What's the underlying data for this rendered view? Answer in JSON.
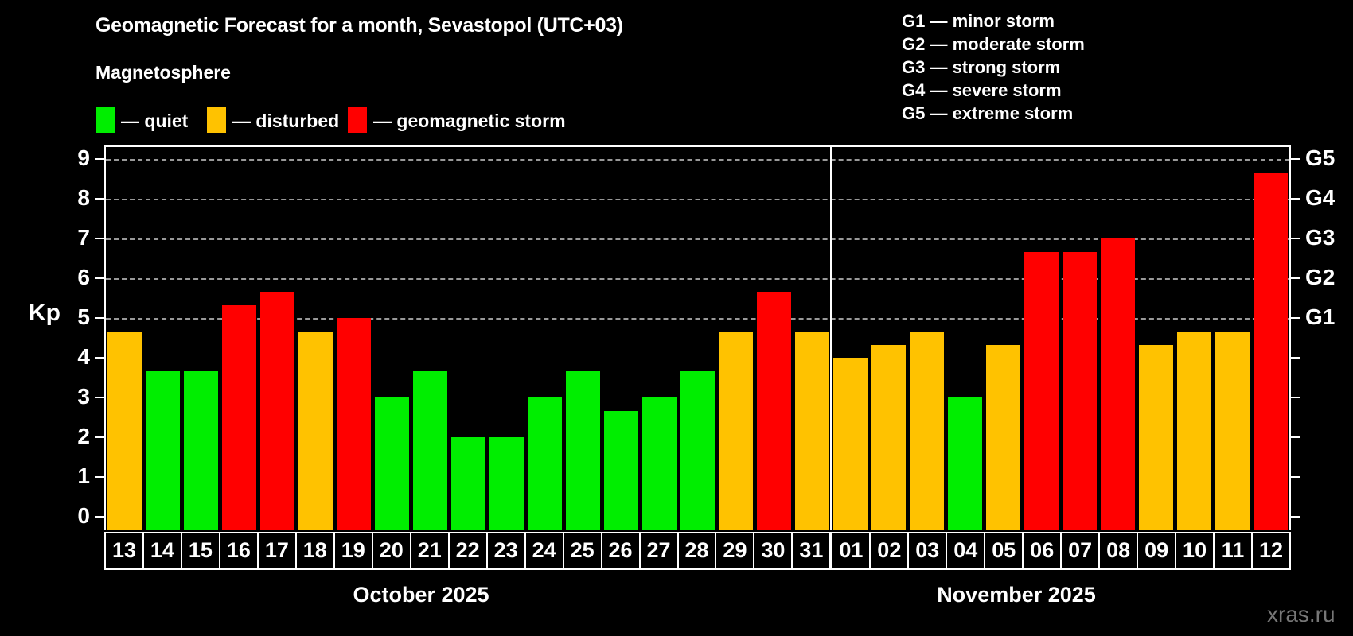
{
  "title": "Geomagnetic Forecast for a month, Sevastopol (UTC+03)",
  "subtitle": "Magnetosphere",
  "watermark": "xras.ru",
  "colors": {
    "quiet": "#00ee00",
    "disturbed": "#ffc200",
    "storm": "#ff0000",
    "grid": "#999999",
    "axis": "#ffffff",
    "background": "#000000",
    "watermark_color": "#777777"
  },
  "legend": [
    {
      "key": "quiet",
      "label": "— quiet"
    },
    {
      "key": "disturbed",
      "label": "— disturbed"
    },
    {
      "key": "storm",
      "label": "— geomagnetic storm"
    }
  ],
  "storm_scale_legend": [
    "G1 — minor storm",
    "G2 — moderate storm",
    "G3 — strong storm",
    "G4 — severe storm",
    "G5 — extreme storm"
  ],
  "y_axis": {
    "label": "Kp",
    "ticks": [
      0,
      1,
      2,
      3,
      4,
      5,
      6,
      7,
      8,
      9
    ]
  },
  "right_axis": {
    "labels": [
      {
        "text": "G1",
        "value": 5
      },
      {
        "text": "G2",
        "value": 6
      },
      {
        "text": "G3",
        "value": 7
      },
      {
        "text": "G4",
        "value": 8
      },
      {
        "text": "G5",
        "value": 9
      }
    ]
  },
  "chart_data": {
    "type": "bar",
    "title": "Geomagnetic Forecast for a month, Sevastopol (UTC+03)",
    "xlabel": "",
    "ylabel": "Kp",
    "ylim": [
      0,
      9
    ],
    "grid": "dashed horizontal at Kp 5-9 only",
    "gridlines_at": [
      5,
      6,
      7,
      8,
      9
    ],
    "months": [
      {
        "label": "October 2025",
        "days": 19
      },
      {
        "label": "November 2025",
        "days": 12
      }
    ],
    "series": [
      {
        "day": "13",
        "month": "October 2025",
        "kp": 4.67,
        "status": "disturbed"
      },
      {
        "day": "14",
        "month": "October 2025",
        "kp": 3.67,
        "status": "quiet"
      },
      {
        "day": "15",
        "month": "October 2025",
        "kp": 3.67,
        "status": "quiet"
      },
      {
        "day": "16",
        "month": "October 2025",
        "kp": 5.33,
        "status": "storm"
      },
      {
        "day": "17",
        "month": "October 2025",
        "kp": 5.67,
        "status": "storm"
      },
      {
        "day": "18",
        "month": "October 2025",
        "kp": 4.67,
        "status": "disturbed"
      },
      {
        "day": "19",
        "month": "October 2025",
        "kp": 5.0,
        "status": "storm"
      },
      {
        "day": "20",
        "month": "October 2025",
        "kp": 3.0,
        "status": "quiet"
      },
      {
        "day": "21",
        "month": "October 2025",
        "kp": 3.67,
        "status": "quiet"
      },
      {
        "day": "22",
        "month": "October 2025",
        "kp": 2.0,
        "status": "quiet"
      },
      {
        "day": "23",
        "month": "October 2025",
        "kp": 2.0,
        "status": "quiet"
      },
      {
        "day": "24",
        "month": "October 2025",
        "kp": 3.0,
        "status": "quiet"
      },
      {
        "day": "25",
        "month": "October 2025",
        "kp": 3.67,
        "status": "quiet"
      },
      {
        "day": "26",
        "month": "October 2025",
        "kp": 2.67,
        "status": "quiet"
      },
      {
        "day": "27",
        "month": "October 2025",
        "kp": 3.0,
        "status": "quiet"
      },
      {
        "day": "28",
        "month": "October 2025",
        "kp": 3.67,
        "status": "quiet"
      },
      {
        "day": "29",
        "month": "October 2025",
        "kp": 4.67,
        "status": "disturbed"
      },
      {
        "day": "30",
        "month": "October 2025",
        "kp": 5.67,
        "status": "storm"
      },
      {
        "day": "31",
        "month": "October 2025",
        "kp": 4.67,
        "status": "disturbed"
      },
      {
        "day": "01",
        "month": "November 2025",
        "kp": 4.0,
        "status": "disturbed"
      },
      {
        "day": "02",
        "month": "November 2025",
        "kp": 4.33,
        "status": "disturbed"
      },
      {
        "day": "03",
        "month": "November 2025",
        "kp": 4.67,
        "status": "disturbed"
      },
      {
        "day": "04",
        "month": "November 2025",
        "kp": 3.0,
        "status": "quiet"
      },
      {
        "day": "05",
        "month": "November 2025",
        "kp": 4.33,
        "status": "disturbed"
      },
      {
        "day": "06",
        "month": "November 2025",
        "kp": 6.67,
        "status": "storm"
      },
      {
        "day": "07",
        "month": "November 2025",
        "kp": 6.67,
        "status": "storm"
      },
      {
        "day": "08",
        "month": "November 2025",
        "kp": 7.0,
        "status": "storm"
      },
      {
        "day": "09",
        "month": "November 2025",
        "kp": 4.33,
        "status": "disturbed"
      },
      {
        "day": "10",
        "month": "November 2025",
        "kp": 4.67,
        "status": "disturbed"
      },
      {
        "day": "11",
        "month": "November 2025",
        "kp": 4.67,
        "status": "disturbed"
      },
      {
        "day": "12",
        "month": "November 2025",
        "kp": 8.67,
        "status": "storm"
      }
    ]
  }
}
